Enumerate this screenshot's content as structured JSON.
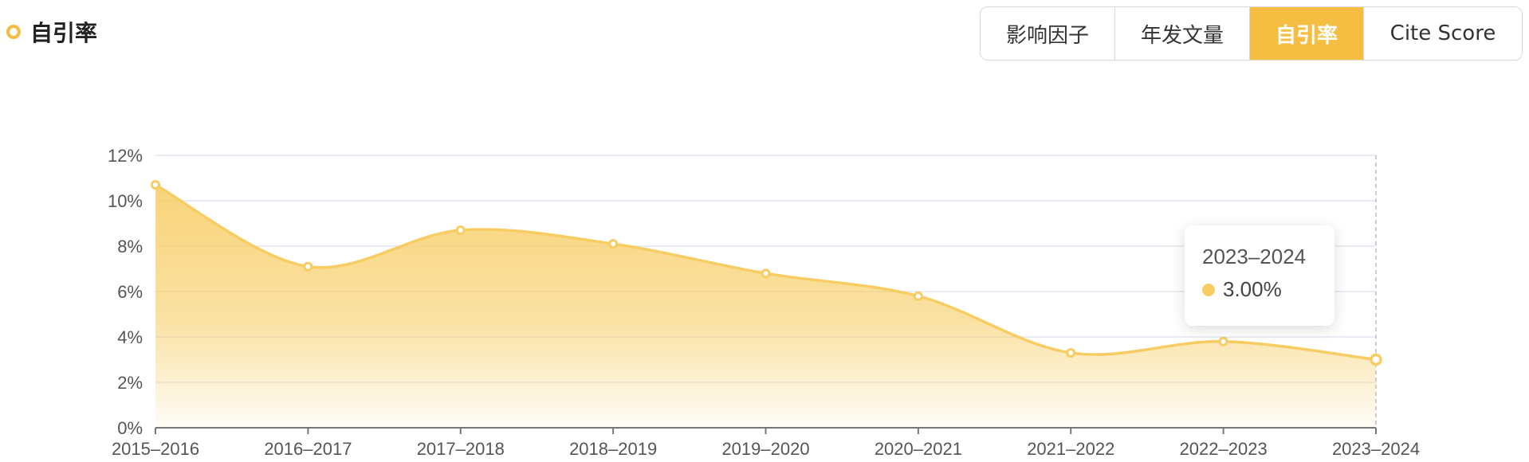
{
  "header": {
    "title": "自引率"
  },
  "tabs": [
    {
      "label": "影响因子",
      "active": false
    },
    {
      "label": "年发文量",
      "active": false
    },
    {
      "label": "自引率",
      "active": true
    },
    {
      "label": "Cite Score",
      "active": false
    }
  ],
  "colors": {
    "accent": "#f5bd42",
    "line": "#f7cd63",
    "grid": "#e3e6ef",
    "axis": "#777777"
  },
  "tooltip": {
    "category": "2023–2024",
    "value": "3.00%"
  },
  "chart_data": {
    "type": "area",
    "categories": [
      "2015–2016",
      "2016–2017",
      "2017–2018",
      "2018–2019",
      "2019–2020",
      "2020–2021",
      "2021–2022",
      "2022–2023",
      "2023–2024"
    ],
    "series": [
      {
        "values": [
          10.7,
          7.1,
          8.7,
          8.1,
          6.8,
          5.8,
          3.3,
          3.8,
          3.0
        ]
      }
    ],
    "ytick_labels": [
      "0%",
      "2%",
      "4%",
      "6%",
      "8%",
      "10%",
      "12%"
    ],
    "ylim": [
      0,
      12
    ],
    "grid": true,
    "xlabel": "",
    "ylabel": "",
    "title": ""
  }
}
